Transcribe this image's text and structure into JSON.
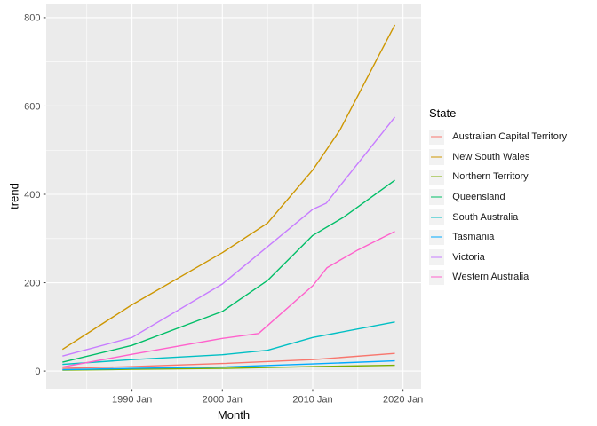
{
  "chart_data": {
    "type": "line",
    "title": "",
    "xlabel": "Month",
    "ylabel": "trend",
    "legend_title": "State",
    "x_axis": {
      "domain": [
        1980.5,
        2022.0
      ],
      "major_ticks": [
        {
          "year": 1990,
          "label": "1990 Jan"
        },
        {
          "year": 2000,
          "label": "2000 Jan"
        },
        {
          "year": 2010,
          "label": "2010 Jan"
        },
        {
          "year": 2020,
          "label": "2020 Jan"
        }
      ],
      "minor_years": [
        1985,
        1995,
        2005,
        2015
      ]
    },
    "y_axis": {
      "domain": [
        -40,
        830
      ],
      "major_ticks": [
        0,
        200,
        400,
        600,
        800
      ],
      "minor_ticks": [
        100,
        300,
        500,
        700
      ]
    },
    "series": [
      {
        "name": "Australian Capital Territory",
        "color": "#F8766D",
        "points": [
          [
            1982.3,
            6
          ],
          [
            1990,
            10
          ],
          [
            2000,
            17
          ],
          [
            2010,
            26
          ],
          [
            2019.1,
            40
          ]
        ]
      },
      {
        "name": "New South Wales",
        "color": "#CD9600",
        "points": [
          [
            1982.3,
            49
          ],
          [
            1990,
            150
          ],
          [
            2000,
            268
          ],
          [
            2005,
            335
          ],
          [
            2010,
            455
          ],
          [
            2013,
            545
          ],
          [
            2019.1,
            784
          ]
        ]
      },
      {
        "name": "Northern Territory",
        "color": "#7CAE00",
        "points": [
          [
            1982.3,
            2
          ],
          [
            1990,
            4
          ],
          [
            2000,
            6
          ],
          [
            2010,
            10
          ],
          [
            2019.1,
            13
          ]
        ]
      },
      {
        "name": "Queensland",
        "color": "#00BE67",
        "points": [
          [
            1982.3,
            20
          ],
          [
            1990,
            58
          ],
          [
            2000,
            135
          ],
          [
            2005,
            205
          ],
          [
            2010,
            307
          ],
          [
            2013.4,
            348
          ],
          [
            2019.1,
            432
          ]
        ]
      },
      {
        "name": "South Australia",
        "color": "#00BFC4",
        "points": [
          [
            1982.3,
            15
          ],
          [
            1990,
            26
          ],
          [
            2000,
            37
          ],
          [
            2005,
            47
          ],
          [
            2010,
            76
          ],
          [
            2019.1,
            111
          ]
        ]
      },
      {
        "name": "Tasmania",
        "color": "#00A9FF",
        "points": [
          [
            1982.3,
            3
          ],
          [
            1990,
            6
          ],
          [
            2000,
            9
          ],
          [
            2010,
            16
          ],
          [
            2019.1,
            23
          ]
        ]
      },
      {
        "name": "Victoria",
        "color": "#C77CFF",
        "points": [
          [
            1982.3,
            34
          ],
          [
            1990,
            76
          ],
          [
            2000,
            197
          ],
          [
            2010,
            366
          ],
          [
            2011.5,
            380
          ],
          [
            2019.1,
            575
          ]
        ]
      },
      {
        "name": "Western Australia",
        "color": "#FF61CC",
        "points": [
          [
            1982.3,
            9
          ],
          [
            1990,
            38
          ],
          [
            2000,
            74
          ],
          [
            2004,
            85
          ],
          [
            2010,
            193
          ],
          [
            2011.6,
            234
          ],
          [
            2015,
            274
          ],
          [
            2019.1,
            316
          ]
        ]
      }
    ],
    "style": {
      "panel_background": "#EBEBEB",
      "grid_color": "#FFFFFF",
      "tick_mark_color": "#333333",
      "tick_text_color": "#4D4D4D",
      "legend_key_background": "#F2F2F2"
    }
  }
}
